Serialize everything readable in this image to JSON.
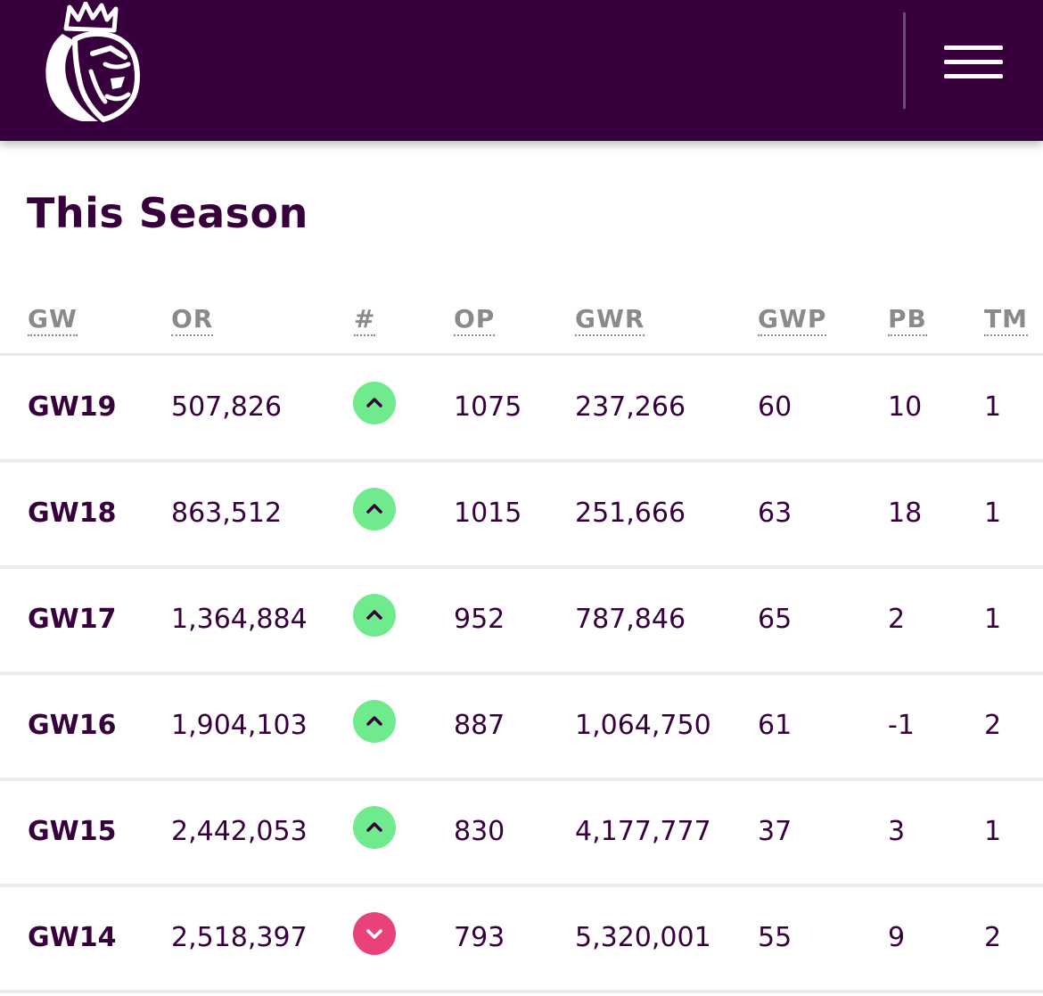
{
  "colors": {
    "brand_purple": "#37003c",
    "up_green": "#6fea8c",
    "down_pink": "#e9417a"
  },
  "header": {
    "logo_icon": "premier-league-lion-icon",
    "menu_icon": "hamburger-menu-icon"
  },
  "title": "This Season",
  "columns": [
    "GW",
    "OR",
    "#",
    "OP",
    "GWR",
    "GWP",
    "PB",
    "TM"
  ],
  "rows": [
    {
      "gw": "GW19",
      "or": "507,826",
      "movement": "up",
      "op": "1075",
      "gwr": "237,266",
      "gwp": "60",
      "pb": "10",
      "tm": "1"
    },
    {
      "gw": "GW18",
      "or": "863,512",
      "movement": "up",
      "op": "1015",
      "gwr": "251,666",
      "gwp": "63",
      "pb": "18",
      "tm": "1"
    },
    {
      "gw": "GW17",
      "or": "1,364,884",
      "movement": "up",
      "op": "952",
      "gwr": "787,846",
      "gwp": "65",
      "pb": "2",
      "tm": "1"
    },
    {
      "gw": "GW16",
      "or": "1,904,103",
      "movement": "up",
      "op": "887",
      "gwr": "1,064,750",
      "gwp": "61",
      "pb": "-1",
      "tm": "2"
    },
    {
      "gw": "GW15",
      "or": "2,442,053",
      "movement": "up",
      "op": "830",
      "gwr": "4,177,777",
      "gwp": "37",
      "pb": "3",
      "tm": "1"
    },
    {
      "gw": "GW14",
      "or": "2,518,397",
      "movement": "down",
      "op": "793",
      "gwr": "5,320,001",
      "gwp": "55",
      "pb": "9",
      "tm": "2"
    }
  ]
}
